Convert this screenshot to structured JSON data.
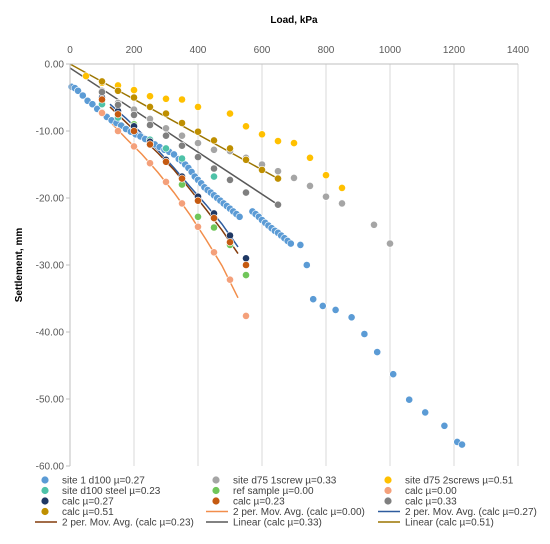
{
  "chart_data": {
    "type": "scatter",
    "title": "",
    "xlabel": "Load, kPa",
    "ylabel": "Settlement, mm",
    "x_axis_position": "top",
    "xlim": [
      0,
      1400
    ],
    "ylim": [
      -60,
      0
    ],
    "x_ticks": [
      0,
      200,
      400,
      600,
      800,
      1000,
      1200,
      1400
    ],
    "y_ticks": [
      0,
      -10,
      -20,
      -30,
      -40,
      -50,
      -60
    ],
    "x_tick_labels": [
      "0",
      "200",
      "400",
      "600",
      "800",
      "1000",
      "1200",
      "1400"
    ],
    "y_tick_labels": [
      "0.00",
      "-10.00",
      "-20.00",
      "-30.00",
      "-40.00",
      "-50.00",
      "-60.00"
    ],
    "grid": {
      "x": true,
      "y": false
    },
    "legend_position": "bottom",
    "series": [
      {
        "name": "site 1 d100 µ=0.27",
        "kind": "marker",
        "color": "#5B9BD5",
        "points": [
          [
            5,
            -3.4
          ],
          [
            15,
            -3.6
          ],
          [
            25,
            -4.0
          ],
          [
            40,
            -4.7
          ],
          [
            55,
            -5.5
          ],
          [
            70,
            -6.0
          ],
          [
            85,
            -6.7
          ],
          [
            100,
            -7.2
          ],
          [
            115,
            -7.9
          ],
          [
            130,
            -8.4
          ],
          [
            145,
            -8.8
          ],
          [
            160,
            -9.2
          ],
          [
            175,
            -9.7
          ],
          [
            190,
            -10.1
          ],
          [
            205,
            -10.5
          ],
          [
            220,
            -10.8
          ],
          [
            235,
            -11.2
          ],
          [
            250,
            -11.6
          ],
          [
            265,
            -12.0
          ],
          [
            280,
            -12.4
          ],
          [
            295,
            -12.8
          ],
          [
            310,
            -13.1
          ],
          [
            325,
            -13.5
          ],
          [
            340,
            -14.2
          ],
          [
            350,
            -14.5
          ],
          [
            360,
            -15.0
          ],
          [
            370,
            -15.5
          ],
          [
            380,
            -16.1
          ],
          [
            390,
            -16.8
          ],
          [
            400,
            -17.3
          ],
          [
            410,
            -17.8
          ],
          [
            420,
            -18.4
          ],
          [
            430,
            -18.8
          ],
          [
            440,
            -19.2
          ],
          [
            450,
            -19.6
          ],
          [
            460,
            -20.0
          ],
          [
            470,
            -20.4
          ],
          [
            480,
            -20.8
          ],
          [
            490,
            -21.2
          ],
          [
            500,
            -21.6
          ],
          [
            510,
            -22.0
          ],
          [
            520,
            -22.4
          ],
          [
            530,
            -22.8
          ],
          [
            570,
            -22.0
          ],
          [
            580,
            -22.4
          ],
          [
            590,
            -22.8
          ],
          [
            600,
            -23.3
          ],
          [
            610,
            -23.7
          ],
          [
            620,
            -24.1
          ],
          [
            630,
            -24.5
          ],
          [
            640,
            -24.9
          ],
          [
            650,
            -25.2
          ],
          [
            660,
            -25.6
          ],
          [
            670,
            -26.0
          ],
          [
            680,
            -26.4
          ],
          [
            690,
            -26.8
          ],
          [
            720,
            -27.0
          ],
          [
            740,
            -30.0
          ],
          [
            760,
            -35.1
          ],
          [
            790,
            -36.1
          ],
          [
            830,
            -36.7
          ],
          [
            880,
            -37.8
          ],
          [
            920,
            -40.3
          ],
          [
            960,
            -43.0
          ],
          [
            1010,
            -46.3
          ],
          [
            1060,
            -50.1
          ],
          [
            1110,
            -52.0
          ],
          [
            1170,
            -54.0
          ],
          [
            1210,
            -56.4
          ],
          [
            1225,
            -56.8
          ]
        ]
      },
      {
        "name": "site d75 1screw µ=0.33",
        "kind": "marker",
        "color": "#A5A5A5",
        "points": [
          [
            100,
            -4.0
          ],
          [
            150,
            -5.8
          ],
          [
            200,
            -6.8
          ],
          [
            250,
            -8.2
          ],
          [
            300,
            -9.6
          ],
          [
            350,
            -10.7
          ],
          [
            400,
            -11.8
          ],
          [
            450,
            -12.8
          ],
          [
            500,
            -13.0
          ],
          [
            550,
            -14.0
          ],
          [
            600,
            -15.0
          ],
          [
            650,
            -16.0
          ],
          [
            700,
            -17.0
          ],
          [
            750,
            -18.2
          ],
          [
            800,
            -19.8
          ],
          [
            850,
            -20.8
          ],
          [
            950,
            -24.0
          ],
          [
            1000,
            -26.8
          ]
        ]
      },
      {
        "name": "site d75 2screws µ=0.51",
        "kind": "marker",
        "color": "#FFC000",
        "points": [
          [
            50,
            -1.8
          ],
          [
            100,
            -2.8
          ],
          [
            150,
            -3.2
          ],
          [
            200,
            -3.9
          ],
          [
            250,
            -4.8
          ],
          [
            300,
            -5.2
          ],
          [
            350,
            -5.3
          ],
          [
            400,
            -6.4
          ],
          [
            500,
            -7.4
          ],
          [
            550,
            -9.3
          ],
          [
            600,
            -10.5
          ],
          [
            650,
            -11.5
          ],
          [
            700,
            -11.8
          ],
          [
            750,
            -14.0
          ],
          [
            800,
            -16.6
          ],
          [
            850,
            -18.5
          ]
        ]
      },
      {
        "name": "site d100 steel µ=0.23",
        "kind": "marker",
        "color": "#4EC2A8",
        "points": [
          [
            100,
            -6.0
          ],
          [
            150,
            -8.0
          ],
          [
            200,
            -9.6
          ],
          [
            250,
            -11.3
          ],
          [
            300,
            -12.6
          ],
          [
            350,
            -14.1
          ],
          [
            450,
            -16.8
          ]
        ]
      },
      {
        "name": "ref sample µ=0.00",
        "kind": "marker",
        "color": "#70C65A",
        "points": [
          [
            200,
            -9.0
          ],
          [
            250,
            -12.0
          ],
          [
            300,
            -14.5
          ],
          [
            350,
            -18.0
          ],
          [
            400,
            -22.8
          ],
          [
            450,
            -24.4
          ],
          [
            500,
            -27.0
          ],
          [
            550,
            -31.5
          ]
        ]
      },
      {
        "name": "calc µ=0.00",
        "kind": "marker",
        "color": "#F4A07A",
        "points": [
          [
            100,
            -7.3
          ],
          [
            150,
            -10.0
          ],
          [
            200,
            -12.3
          ],
          [
            250,
            -14.8
          ],
          [
            300,
            -17.6
          ],
          [
            350,
            -20.8
          ],
          [
            400,
            -24.3
          ],
          [
            450,
            -28.1
          ],
          [
            500,
            -32.2
          ],
          [
            550,
            -37.6
          ]
        ]
      },
      {
        "name": "calc µ=0.27",
        "kind": "marker",
        "color": "#1F3864",
        "points": [
          [
            100,
            -5.0
          ],
          [
            150,
            -7.0
          ],
          [
            200,
            -9.3
          ],
          [
            250,
            -11.6
          ],
          [
            300,
            -14.3
          ],
          [
            350,
            -16.8
          ],
          [
            400,
            -19.8
          ],
          [
            450,
            -22.3
          ],
          [
            500,
            -25.6
          ],
          [
            550,
            -29.0
          ]
        ]
      },
      {
        "name": "calc µ=0.23",
        "kind": "marker",
        "color": "#C55A11",
        "points": [
          [
            100,
            -5.3
          ],
          [
            150,
            -7.5
          ],
          [
            200,
            -10.0
          ],
          [
            250,
            -12.0
          ],
          [
            300,
            -14.6
          ],
          [
            350,
            -17.1
          ],
          [
            400,
            -20.4
          ],
          [
            450,
            -23.0
          ],
          [
            500,
            -26.6
          ],
          [
            550,
            -30.0
          ]
        ]
      },
      {
        "name": "calc µ=0.33",
        "kind": "marker",
        "color": "#7F7F7F",
        "points": [
          [
            100,
            -4.2
          ],
          [
            150,
            -6.1
          ],
          [
            200,
            -7.6
          ],
          [
            250,
            -9.1
          ],
          [
            300,
            -10.7
          ],
          [
            350,
            -12.2
          ],
          [
            400,
            -13.9
          ],
          [
            450,
            -15.6
          ],
          [
            500,
            -17.3
          ],
          [
            550,
            -19.2
          ],
          [
            650,
            -21.0
          ]
        ]
      },
      {
        "name": "calc µ=0.51",
        "kind": "marker",
        "color": "#BF8F00",
        "points": [
          [
            100,
            -2.6
          ],
          [
            150,
            -4.0
          ],
          [
            200,
            -5.0
          ],
          [
            250,
            -6.4
          ],
          [
            300,
            -7.4
          ],
          [
            350,
            -8.8
          ],
          [
            400,
            -10.1
          ],
          [
            450,
            -11.4
          ],
          [
            500,
            -12.6
          ],
          [
            550,
            -14.3
          ],
          [
            600,
            -15.8
          ],
          [
            650,
            -17.1
          ]
        ]
      },
      {
        "name": "2 per. Mov. Avg. (calc µ=0.00)",
        "kind": "line",
        "color": "#F28E4B",
        "points": [
          [
            125,
            -8.6
          ],
          [
            175,
            -11.1
          ],
          [
            225,
            -13.5
          ],
          [
            275,
            -16.2
          ],
          [
            325,
            -19.2
          ],
          [
            375,
            -22.5
          ],
          [
            425,
            -26.2
          ],
          [
            475,
            -30.1
          ],
          [
            525,
            -34.9
          ]
        ]
      },
      {
        "name": "2 per. Mov. Avg. (calc µ=0.27)",
        "kind": "line",
        "color": "#2E5C9E",
        "points": [
          [
            125,
            -6.0
          ],
          [
            175,
            -8.1
          ],
          [
            225,
            -10.4
          ],
          [
            275,
            -12.9
          ],
          [
            325,
            -15.5
          ],
          [
            375,
            -18.3
          ],
          [
            425,
            -21.0
          ],
          [
            475,
            -23.9
          ],
          [
            525,
            -27.3
          ]
        ]
      },
      {
        "name": "2 per. Mov. Avg. (calc µ=0.23)",
        "kind": "line",
        "color": "#843C0C",
        "points": [
          [
            125,
            -6.4
          ],
          [
            175,
            -8.7
          ],
          [
            225,
            -11.0
          ],
          [
            275,
            -13.3
          ],
          [
            325,
            -15.8
          ],
          [
            375,
            -18.7
          ],
          [
            425,
            -21.7
          ],
          [
            475,
            -24.8
          ],
          [
            525,
            -28.3
          ]
        ]
      },
      {
        "name": "Linear (calc µ=0.33)",
        "kind": "line",
        "color": "#595959",
        "points": [
          [
            0,
            -0.6
          ],
          [
            650,
            -21.0
          ]
        ]
      },
      {
        "name": "Linear (calc µ=0.51)",
        "kind": "line",
        "color": "#9C7500",
        "points": [
          [
            0,
            0.0
          ],
          [
            650,
            -17.1
          ]
        ]
      }
    ]
  }
}
